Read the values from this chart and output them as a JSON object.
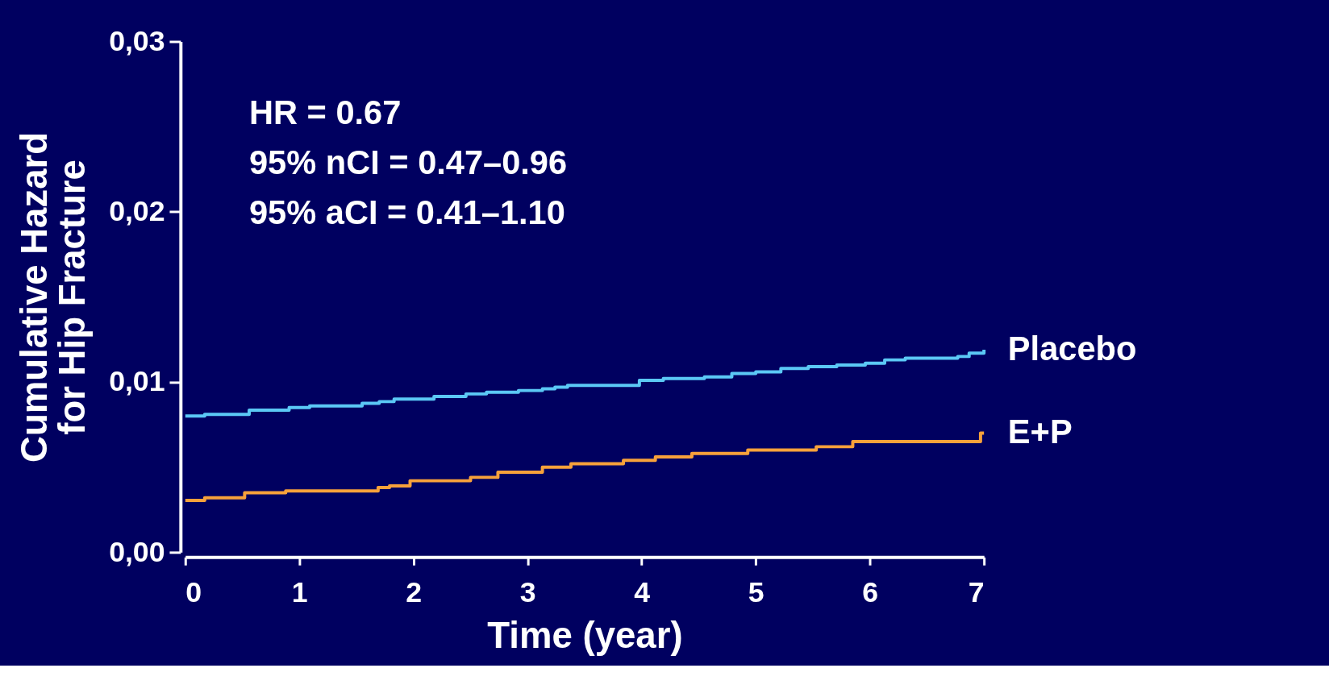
{
  "chart_data": {
    "type": "step",
    "xlabel": "Time (year)",
    "ylabel": "Cumulative Hazard\nfor Hip Fracture",
    "xlim": [
      0,
      7
    ],
    "xticks": [
      0,
      1,
      2,
      3,
      4,
      5,
      6,
      7
    ],
    "ylim": [
      0,
      0.03
    ],
    "yticks": [
      {
        "value": 0,
        "label": "0,00"
      },
      {
        "value": 0.01,
        "label": "0,01"
      },
      {
        "value": 0.02,
        "label": "0,02"
      },
      {
        "value": 0.03,
        "label": "0,03"
      }
    ],
    "grid": false,
    "legend": false,
    "marker": "none",
    "line_style": "solid",
    "annotations": [
      "HR = 0.67",
      "95% nCI = 0.47–0.96",
      "95% aCI = 0.41–1.10"
    ],
    "series": [
      {
        "name": "Placebo",
        "color": "#5bc8f5",
        "x": [
          0,
          0.17,
          0.56,
          0.91,
          1.09,
          1.55,
          1.7,
          1.83,
          2.18,
          2.46,
          2.64,
          2.92,
          3.13,
          3.24,
          3.35,
          3.98,
          4.19,
          4.55,
          4.79,
          5.0,
          5.22,
          5.46,
          5.71,
          5.96,
          6.13,
          6.31,
          6.77,
          6.87,
          7.0
        ],
        "values": [
          0.008,
          0.0081,
          0.00835,
          0.0085,
          0.0086,
          0.00875,
          0.00885,
          0.009,
          0.00915,
          0.0093,
          0.0094,
          0.0095,
          0.0096,
          0.0097,
          0.0098,
          0.0101,
          0.0102,
          0.0103,
          0.0105,
          0.0106,
          0.0108,
          0.0109,
          0.011,
          0.0111,
          0.0113,
          0.0114,
          0.0115,
          0.0117,
          0.0119
        ]
      },
      {
        "name": "E+P",
        "color": "#f7a13b",
        "x": [
          0,
          0.17,
          0.52,
          0.88,
          1.69,
          1.79,
          1.97,
          2.5,
          2.74,
          3.13,
          3.38,
          3.84,
          4.12,
          4.44,
          4.93,
          5.53,
          5.85,
          6.97,
          7.0
        ],
        "values": [
          0.00305,
          0.0032,
          0.0035,
          0.0036,
          0.0038,
          0.0039,
          0.0042,
          0.0044,
          0.0047,
          0.005,
          0.0052,
          0.0054,
          0.0056,
          0.0058,
          0.006,
          0.0062,
          0.0065,
          0.007,
          0.007
        ]
      }
    ]
  }
}
